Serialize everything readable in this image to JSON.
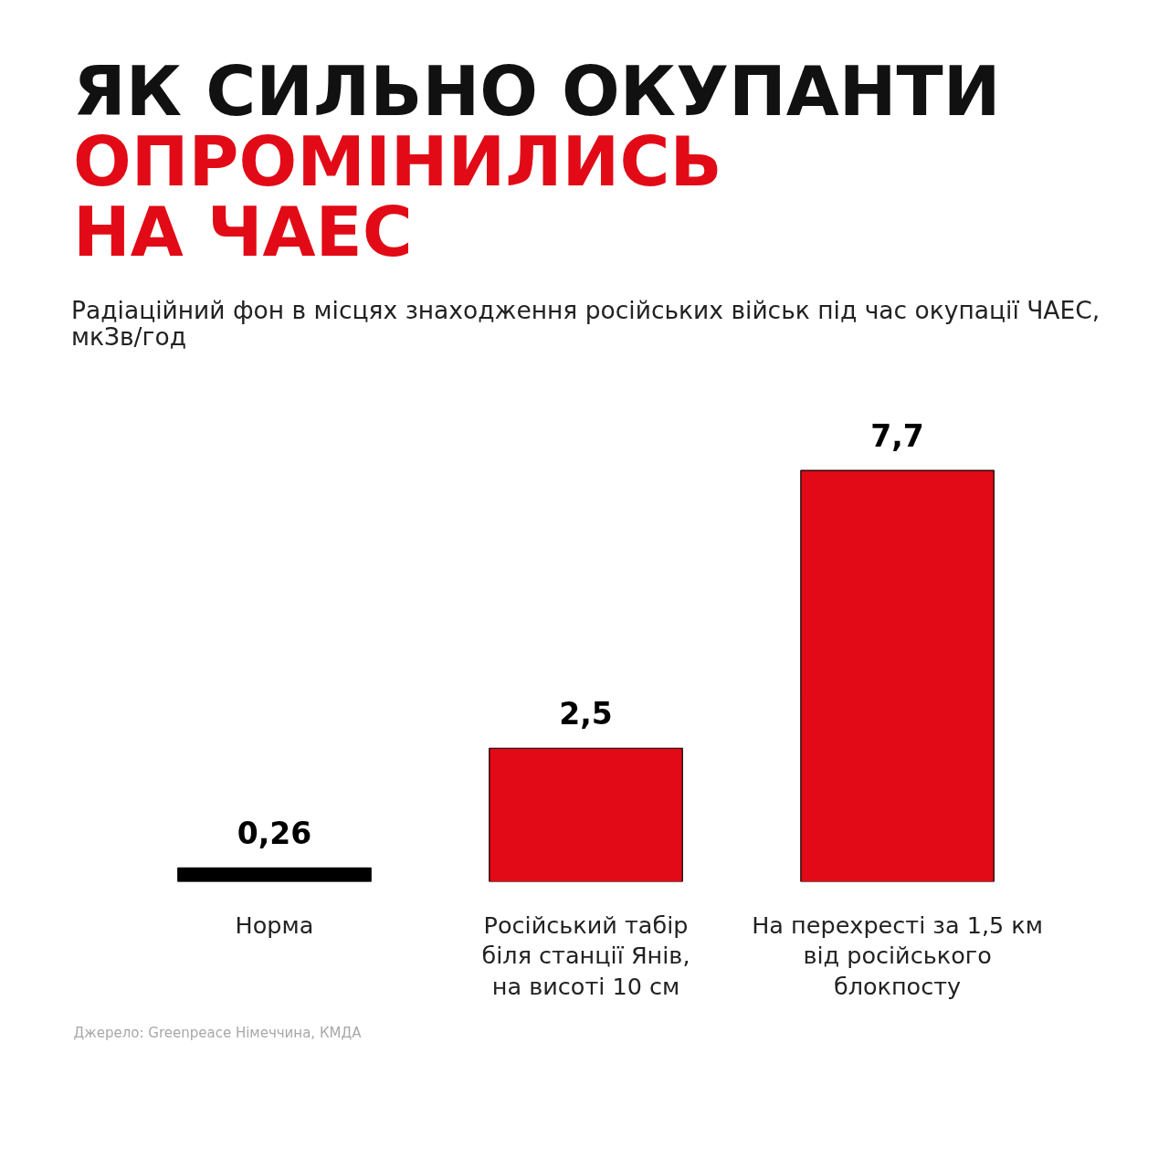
{
  "chart_data": {
    "type": "bar",
    "title": "ЯК СИЛЬНО ОКУПАНТИ\nОПРОМІНИЛИСЬ\nНА ЧАЕС",
    "subtitle": "Радіаційний фон в місцях знаходження російських військ під час окупації ЧАЕС, мкЗв/год",
    "categories": [
      "Норма",
      "Російський табір\nбіля станції Янів,\nна висоті 10 см",
      "На перехресті за 1,5 км\nвід російського\nблокпосту"
    ],
    "values": [
      0.26,
      2.5,
      7.7
    ],
    "colors": [
      "#000000",
      "#e20a16",
      "#e20a16"
    ],
    "value_labels": [
      "0,26",
      "2,5",
      "7,7"
    ],
    "tick_labels": "x",
    "grid": false,
    "annotations": [
      "Джерело: Greenpeace Німеччина, КМДА"
    ]
  }
}
